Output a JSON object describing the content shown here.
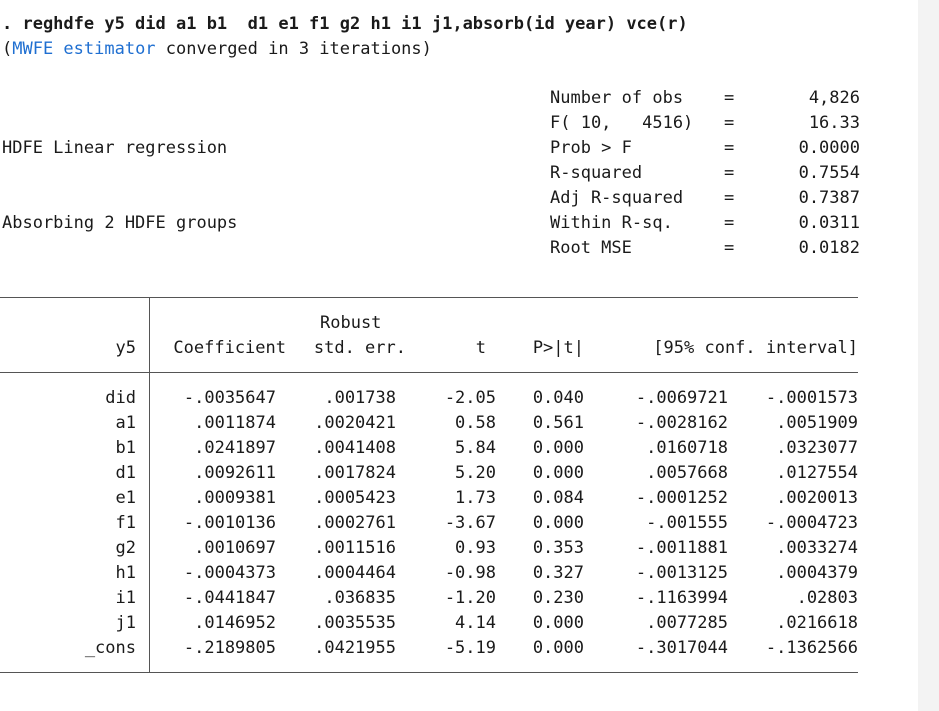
{
  "command": ". reghdfe y5 did a1 b1  d1 e1 f1 g2 h1 i1 j1,absorb(id year) vce(r)",
  "note": {
    "open": "(",
    "link": "MWFE estimator",
    "rest": " converged in 3 iterations)"
  },
  "header": {
    "title": "HDFE Linear regression",
    "subtitle": "Absorbing 2 HDFE groups"
  },
  "stats": [
    {
      "label": "Number of obs",
      "eq": "=",
      "value": "4,826"
    },
    {
      "label": "F( 10,   4516)",
      "eq": "=",
      "value": "16.33"
    },
    {
      "label": "Prob > F",
      "eq": "=",
      "value": "0.0000"
    },
    {
      "label": "R-squared",
      "eq": "=",
      "value": "0.7554"
    },
    {
      "label": "Adj R-squared",
      "eq": "=",
      "value": "0.7387"
    },
    {
      "label": "Within R-sq.",
      "eq": "=",
      "value": "0.0311"
    },
    {
      "label": "Root MSE",
      "eq": "=",
      "value": "0.0182"
    }
  ],
  "table": {
    "robust_label": "Robust",
    "depvar": "y5",
    "columns": [
      "Coefficient",
      "std. err.",
      "t",
      "P>|t|",
      "[95% conf. interval]"
    ],
    "rows": [
      {
        "var": "did",
        "coef": "-.0035647",
        "se": ".001738",
        "t": "-2.05",
        "p": "0.040",
        "lo": "-.0069721",
        "hi": "-.0001573"
      },
      {
        "var": "a1",
        "coef": ".0011874",
        "se": ".0020421",
        "t": "0.58",
        "p": "0.561",
        "lo": "-.0028162",
        "hi": ".0051909"
      },
      {
        "var": "b1",
        "coef": ".0241897",
        "se": ".0041408",
        "t": "5.84",
        "p": "0.000",
        "lo": ".0160718",
        "hi": ".0323077"
      },
      {
        "var": "d1",
        "coef": ".0092611",
        "se": ".0017824",
        "t": "5.20",
        "p": "0.000",
        "lo": ".0057668",
        "hi": ".0127554"
      },
      {
        "var": "e1",
        "coef": ".0009381",
        "se": ".0005423",
        "t": "1.73",
        "p": "0.084",
        "lo": "-.0001252",
        "hi": ".0020013"
      },
      {
        "var": "f1",
        "coef": "-.0010136",
        "se": ".0002761",
        "t": "-3.67",
        "p": "0.000",
        "lo": "-.001555",
        "hi": "-.0004723"
      },
      {
        "var": "g2",
        "coef": ".0010697",
        "se": ".0011516",
        "t": "0.93",
        "p": "0.353",
        "lo": "-.0011881",
        "hi": ".0033274"
      },
      {
        "var": "h1",
        "coef": "-.0004373",
        "se": ".0004464",
        "t": "-0.98",
        "p": "0.327",
        "lo": "-.0013125",
        "hi": ".0004379"
      },
      {
        "var": "i1",
        "coef": "-.0441847",
        "se": ".036835",
        "t": "-1.20",
        "p": "0.230",
        "lo": "-.1163994",
        "hi": ".02803"
      },
      {
        "var": "j1",
        "coef": ".0146952",
        "se": ".0035535",
        "t": "4.14",
        "p": "0.000",
        "lo": ".0077285",
        "hi": ".0216618"
      },
      {
        "var": "_cons",
        "coef": "-.2189805",
        "se": ".0421955",
        "t": "-5.19",
        "p": "0.000",
        "lo": "-.3017044",
        "hi": "-.1362566"
      }
    ]
  }
}
